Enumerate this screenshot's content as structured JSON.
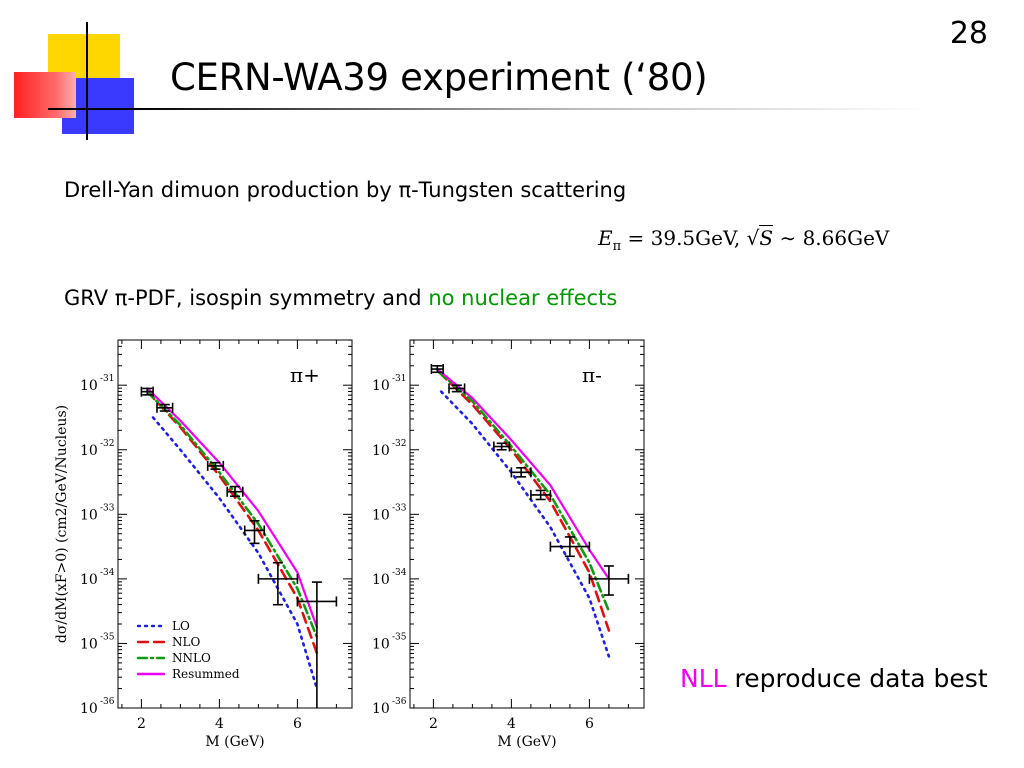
{
  "slide": {
    "number": "28",
    "title": "CERN-WA39 experiment (‘80)",
    "subtitle": "Drell-Yan dimuon production by π-Tungsten scattering",
    "formula": {
      "lhs_main": "E",
      "lhs_sub": "π",
      "eq_text": " = 39.5GeV, ",
      "sqrt_arg": "S",
      "rhs_text": " ∼ 8.66GeV"
    },
    "grv_text": "GRV π-PDF, isospin symmetry and ",
    "grv_highlight": "no nuclear effects",
    "conclusion_highlight": "NLL",
    "conclusion_text": " reproduce data best"
  },
  "colors": {
    "LO": "#2020dd",
    "NLO": "#dd1111",
    "NNLO": "#119911",
    "Resummed": "#ee00ee",
    "grv_highlight": "#009900",
    "nll_highlight": "#ee00ee"
  },
  "chart_data": [
    {
      "type": "line",
      "annotation": "π+",
      "xlabel": "M (GeV)",
      "ylabel": "dσ/dM(xF>0) (cm2/GeV/Nucleus)",
      "xlim": [
        1.4,
        7.4
      ],
      "x_ticks": [
        2,
        4,
        6
      ],
      "ylog": true,
      "ylim_exp": [
        -36,
        -30.3
      ],
      "y_ticks_exp": [
        -31,
        -32,
        -33,
        -34,
        -35,
        -36
      ],
      "y_tick_base": "10",
      "legend": {
        "position": "bottom-left",
        "entries": [
          "LO",
          "NLO",
          "NNLO",
          "Resummed"
        ]
      },
      "series": [
        {
          "name": "LO",
          "style": "dotted",
          "x": [
            2.3,
            3.0,
            4.0,
            5.0,
            6.0,
            6.5
          ],
          "y_exp": [
            -31.5,
            -32.0,
            -32.75,
            -33.6,
            -34.7,
            -35.7
          ]
        },
        {
          "name": "NLO",
          "style": "dashed",
          "x": [
            2.15,
            3.0,
            4.0,
            5.0,
            6.0,
            6.5
          ],
          "y_exp": [
            -31.1,
            -31.65,
            -32.4,
            -33.25,
            -34.3,
            -35.15
          ]
        },
        {
          "name": "NNLO",
          "style": "dashdot",
          "x": [
            2.15,
            3.0,
            4.0,
            5.0,
            6.0,
            6.5
          ],
          "y_exp": [
            -31.1,
            -31.62,
            -32.35,
            -33.15,
            -34.15,
            -34.9
          ]
        },
        {
          "name": "Resummed",
          "style": "solid",
          "x": [
            2.15,
            3.0,
            4.0,
            5.0,
            6.0,
            6.5
          ],
          "y_exp": [
            -31.05,
            -31.55,
            -32.2,
            -32.95,
            -33.9,
            -34.75
          ]
        }
      ],
      "data_points": [
        {
          "x": 2.15,
          "xerr": 0.15,
          "y_exp": -31.1,
          "y_lo_exp": -31.15,
          "y_hi_exp": -31.05
        },
        {
          "x": 2.6,
          "xerr": 0.2,
          "y_exp": -31.35,
          "y_lo_exp": -31.4,
          "y_hi_exp": -31.3
        },
        {
          "x": 3.9,
          "xerr": 0.2,
          "y_exp": -32.25,
          "y_lo_exp": -32.3,
          "y_hi_exp": -32.2
        },
        {
          "x": 4.4,
          "xerr": 0.2,
          "y_exp": -32.65,
          "y_lo_exp": -32.72,
          "y_hi_exp": -32.57
        },
        {
          "x": 4.9,
          "xerr": 0.25,
          "y_exp": -33.25,
          "y_lo_exp": -33.45,
          "y_hi_exp": -33.1
        },
        {
          "x": 5.5,
          "xerr": 0.5,
          "y_exp": -34.0,
          "y_lo_exp": -34.4,
          "y_hi_exp": -33.75
        },
        {
          "x": 6.5,
          "xerr": 0.5,
          "y_exp": -34.35,
          "y_lo_exp": -36.0,
          "y_hi_exp": -34.05
        }
      ]
    },
    {
      "type": "line",
      "annotation": "π-",
      "xlabel": "M (GeV)",
      "xlim": [
        1.4,
        7.4
      ],
      "x_ticks": [
        2,
        4,
        6
      ],
      "ylog": true,
      "ylim_exp": [
        -36,
        -30.3
      ],
      "y_ticks_exp": [
        -31,
        -32,
        -33,
        -34,
        -35,
        -36
      ],
      "y_tick_base": "10",
      "series": [
        {
          "name": "LO",
          "style": "dotted",
          "x": [
            2.2,
            3.0,
            4.0,
            5.0,
            6.0,
            6.5
          ],
          "y_exp": [
            -31.1,
            -31.6,
            -32.35,
            -33.2,
            -34.3,
            -35.2
          ]
        },
        {
          "name": "NLO",
          "style": "dashed",
          "x": [
            2.15,
            3.0,
            4.0,
            5.0,
            6.0,
            6.5
          ],
          "y_exp": [
            -30.8,
            -31.3,
            -32.0,
            -32.8,
            -33.9,
            -34.8
          ]
        },
        {
          "name": "NNLO",
          "style": "dashdot",
          "x": [
            2.15,
            3.0,
            4.0,
            5.0,
            6.0,
            6.5
          ],
          "y_exp": [
            -30.8,
            -31.25,
            -31.95,
            -32.7,
            -33.75,
            -34.5
          ]
        },
        {
          "name": "Resummed",
          "style": "solid",
          "x": [
            2.1,
            3.0,
            4.0,
            5.0,
            6.0,
            6.5
          ],
          "y_exp": [
            -30.75,
            -31.2,
            -31.85,
            -32.55,
            -33.55,
            -34.0
          ]
        }
      ],
      "data_points": [
        {
          "x": 2.1,
          "xerr": 0.15,
          "y_exp": -30.75,
          "y_lo_exp": -30.8,
          "y_hi_exp": -30.7
        },
        {
          "x": 2.6,
          "xerr": 0.2,
          "y_exp": -31.05,
          "y_lo_exp": -31.1,
          "y_hi_exp": -31.0
        },
        {
          "x": 3.75,
          "xerr": 0.2,
          "y_exp": -31.95,
          "y_lo_exp": -32.0,
          "y_hi_exp": -31.9
        },
        {
          "x": 4.25,
          "xerr": 0.25,
          "y_exp": -32.35,
          "y_lo_exp": -32.42,
          "y_hi_exp": -32.28
        },
        {
          "x": 4.75,
          "xerr": 0.25,
          "y_exp": -32.7,
          "y_lo_exp": -32.77,
          "y_hi_exp": -32.63
        },
        {
          "x": 5.5,
          "xerr": 0.5,
          "y_exp": -33.5,
          "y_lo_exp": -33.65,
          "y_hi_exp": -33.35
        },
        {
          "x": 6.5,
          "xerr": 0.5,
          "y_exp": -34.0,
          "y_lo_exp": -34.25,
          "y_hi_exp": -33.8
        }
      ]
    }
  ]
}
